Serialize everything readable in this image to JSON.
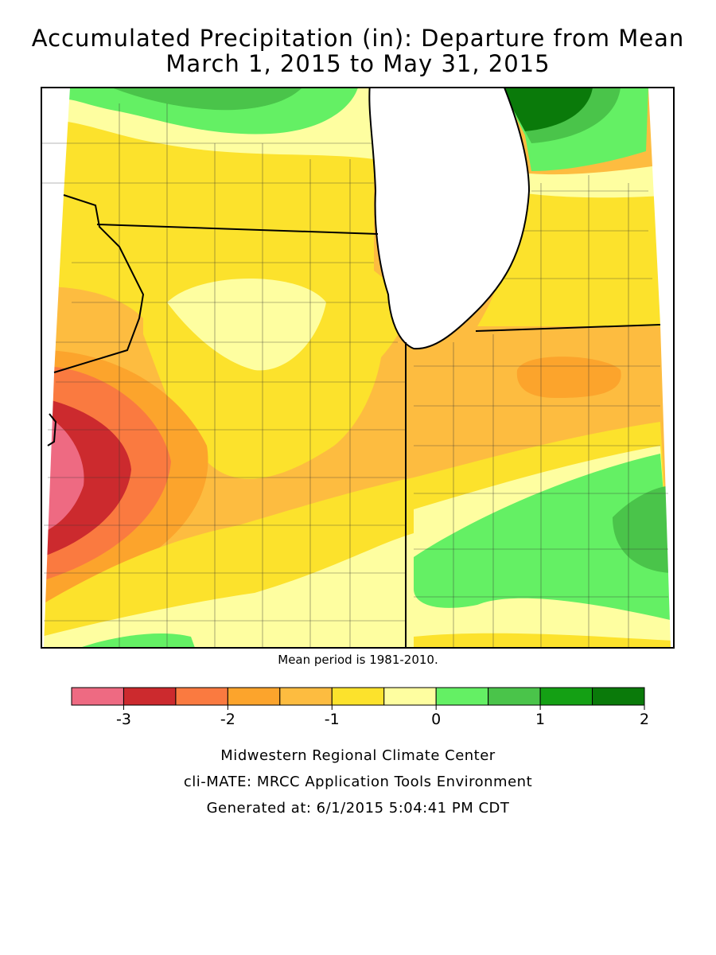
{
  "title": [
    "Accumulated Precipitation (in): Departure from Mean",
    "March 1, 2015 to May 31, 2015"
  ],
  "note": "Mean period is 1981-2010.",
  "legend": {
    "edges": [
      -3.5,
      -3,
      -2.5,
      -2,
      -1.5,
      -1,
      -0.5,
      0,
      0.5,
      1,
      1.5,
      2
    ],
    "colors": [
      "#ee6a82",
      "#cc2a2e",
      "#fa7a40",
      "#fca42c",
      "#fdbc40",
      "#fce22c",
      "#fefea0",
      "#64f064",
      "#4ac44a",
      "#14a014",
      "#0a7a0a"
    ],
    "ticks": [
      -3,
      -2,
      -1,
      0,
      1,
      2
    ]
  },
  "footer": [
    "Midwestern Regional Climate Center",
    "cli-MATE: MRCC Application Tools Environment",
    "Generated at: 6/1/2015 5:04:41 PM CDT"
  ]
}
